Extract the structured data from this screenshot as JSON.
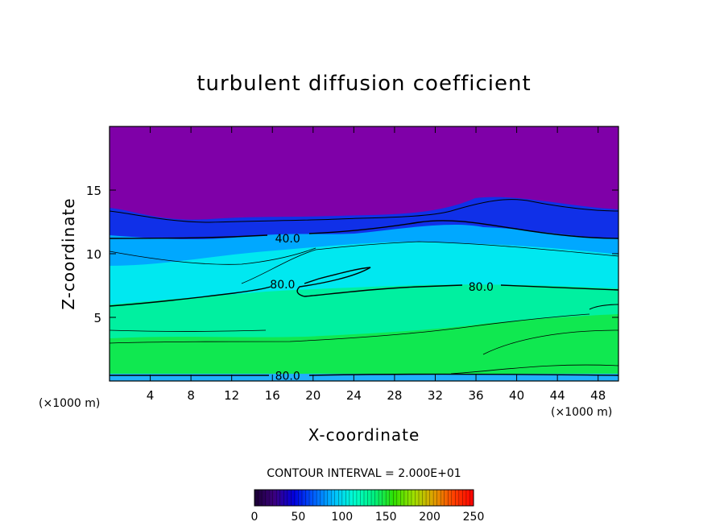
{
  "chart_data": {
    "type": "heatmap",
    "title": "turbulent diffusion coefficient",
    "xlabel": "X-coordinate",
    "ylabel": "Z-coordinate",
    "x_unit_left": "(×1000 m)",
    "x_unit_right": "(×1000 m)",
    "xlim": [
      0,
      50
    ],
    "ylim": [
      0,
      20
    ],
    "x_ticks": [
      4,
      8,
      12,
      16,
      20,
      24,
      28,
      32,
      36,
      40,
      44,
      48
    ],
    "y_ticks": [
      5,
      10,
      15
    ],
    "contour_interval_text": "CONTOUR INTERVAL = 2.000E+01",
    "contour_labels": [
      {
        "text": "40.0",
        "x": 17.5,
        "z": 11.2
      },
      {
        "text": "80.0",
        "x": 17.0,
        "z": 7.6
      },
      {
        "text": "80.0",
        "x": 36.5,
        "z": 7.4
      },
      {
        "text": "80.0",
        "x": 17.5,
        "z": 0.4
      }
    ],
    "colorbar": {
      "min": 0,
      "max": 250,
      "ticks": [
        0,
        50,
        100,
        150,
        200,
        250
      ],
      "colors": [
        "#1a0033",
        "#3b0080",
        "#0000e0",
        "#0060ff",
        "#00c0ff",
        "#00ffd0",
        "#00f080",
        "#30e000",
        "#a0e000",
        "#e0a000",
        "#ff4000",
        "#ff0000"
      ]
    },
    "field_colors": {
      "top": "#7f00a8",
      "band_upper": "#1030e8",
      "band_mid": "#00a8ff",
      "band_cyan": "#00e8f0",
      "band_green_upper": "#00f0a0",
      "band_green": "#10e850",
      "surface": "#20b0ff"
    },
    "grid": false
  }
}
